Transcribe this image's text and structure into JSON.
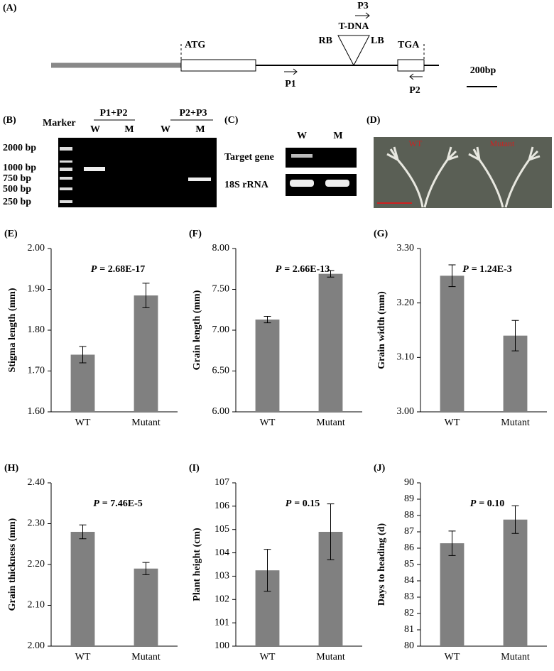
{
  "panels": {
    "A": {
      "label": "(A)",
      "atg": "ATG",
      "tdna": "T-DNA",
      "rb": "RB",
      "lb": "LB",
      "p3": "P3",
      "tga": "TGA",
      "p1": "P1",
      "p2": "P2",
      "scale": "200bp"
    },
    "B": {
      "label": "(B)",
      "marker": "Marker",
      "primer_sets": [
        "P1+P2",
        "P2+P3"
      ],
      "lanes": [
        "W",
        "M",
        "W",
        "M"
      ],
      "ladder": [
        "2000 bp",
        "1000 bp",
        "750 bp",
        "500 bp",
        "250 bp"
      ]
    },
    "C": {
      "label": "(C)",
      "lanes": [
        "W",
        "M"
      ],
      "rows": [
        "Target gene",
        "18S rRNA"
      ]
    },
    "D": {
      "label": "(D)",
      "samples": [
        "WT",
        "Mutant"
      ]
    }
  },
  "chart_data": [
    {
      "type": "bar",
      "panel_label": "(E)",
      "annotation_symbol": "P",
      "annotation": "= 2.68E-17",
      "y_label": "Stigma length (mm)",
      "categories": [
        "WT",
        "Mutant"
      ],
      "series": [
        {
          "color": "#808080",
          "values": [
            1.74,
            1.885
          ],
          "errors": [
            0.02,
            0.03
          ]
        }
      ],
      "ylim": [
        1.6,
        2.0
      ],
      "yticks": [
        {
          "value": 1.6,
          "label": "1.60"
        },
        {
          "value": 1.7,
          "label": "1.70"
        },
        {
          "value": 1.8,
          "label": "1.80"
        },
        {
          "value": 1.9,
          "label": "1.90"
        },
        {
          "value": 2.0,
          "label": "2.00"
        }
      ]
    },
    {
      "type": "bar",
      "panel_label": "(F)",
      "annotation_symbol": "P",
      "annotation": "= 2.66E-13",
      "y_label": "Grain length (mm)",
      "categories": [
        "WT",
        "Mutant"
      ],
      "series": [
        {
          "color": "#808080",
          "values": [
            7.13,
            7.69
          ],
          "errors": [
            0.04,
            0.04
          ]
        }
      ],
      "ylim": [
        6.0,
        8.0
      ],
      "yticks": [
        {
          "value": 6.0,
          "label": "6.00"
        },
        {
          "value": 6.5,
          "label": "6.50"
        },
        {
          "value": 7.0,
          "label": "7.00"
        },
        {
          "value": 7.5,
          "label": "7.50"
        },
        {
          "value": 8.0,
          "label": "8.00"
        }
      ]
    },
    {
      "type": "bar",
      "panel_label": "(G)",
      "annotation_symbol": "P",
      "annotation": "= 1.24E-3",
      "y_label": "Grain width (mm)",
      "categories": [
        "WT",
        "Mutant"
      ],
      "series": [
        {
          "color": "#808080",
          "values": [
            3.25,
            3.14
          ],
          "errors": [
            0.02,
            0.028
          ]
        }
      ],
      "ylim": [
        3.0,
        3.3
      ],
      "yticks": [
        {
          "value": 3.0,
          "label": "3.00"
        },
        {
          "value": 3.1,
          "label": "3.10"
        },
        {
          "value": 3.2,
          "label": "3.20"
        },
        {
          "value": 3.3,
          "label": "3.30"
        }
      ]
    },
    {
      "type": "bar",
      "panel_label": "(H)",
      "annotation_symbol": "P",
      "annotation": "= 7.46E-5",
      "y_label": "Grain thickness (mm)",
      "categories": [
        "WT",
        "Mutant"
      ],
      "series": [
        {
          "color": "#808080",
          "values": [
            2.28,
            2.19
          ],
          "errors": [
            0.017,
            0.015
          ]
        }
      ],
      "ylim": [
        2.0,
        2.4
      ],
      "yticks": [
        {
          "value": 2.0,
          "label": "2.00"
        },
        {
          "value": 2.1,
          "label": "2.10"
        },
        {
          "value": 2.2,
          "label": "2.20"
        },
        {
          "value": 2.3,
          "label": "2.30"
        },
        {
          "value": 2.4,
          "label": "2.40"
        }
      ]
    },
    {
      "type": "bar",
      "panel_label": "(I)",
      "annotation_symbol": "P",
      "annotation": "= 0.15",
      "y_label": "Plant height (cm)",
      "categories": [
        "WT",
        "Mutant"
      ],
      "series": [
        {
          "color": "#808080",
          "values": [
            103.25,
            104.9
          ],
          "errors": [
            0.9,
            1.2
          ]
        }
      ],
      "ylim": [
        100,
        107
      ],
      "yticks": [
        100,
        101,
        102,
        103,
        104,
        105,
        106,
        107
      ]
    },
    {
      "type": "bar",
      "panel_label": "(J)",
      "annotation_symbol": "P",
      "annotation": "= 0.10",
      "y_label": "Days to heading (d)",
      "categories": [
        "WT",
        "Mutant"
      ],
      "series": [
        {
          "color": "#808080",
          "values": [
            86.3,
            87.75
          ],
          "errors": [
            0.75,
            0.85
          ]
        }
      ],
      "ylim": [
        80,
        90
      ],
      "yticks": [
        80,
        81,
        82,
        83,
        84,
        85,
        86,
        87,
        88,
        89,
        90
      ]
    }
  ]
}
